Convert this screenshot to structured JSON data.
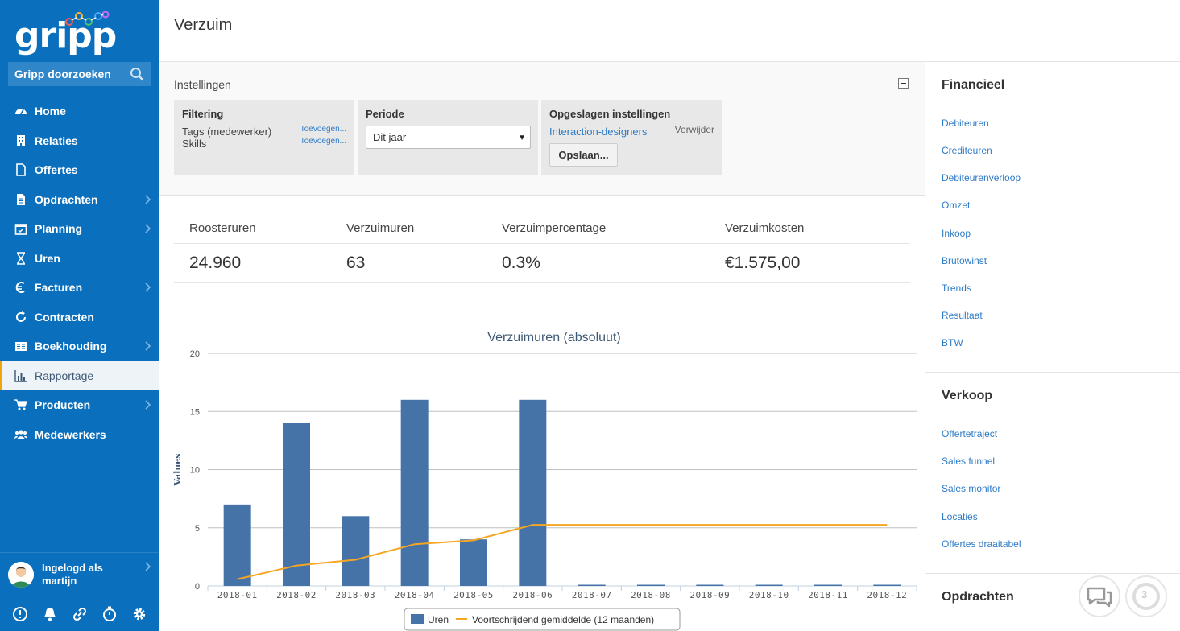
{
  "sidebar": {
    "logo_text": "gripp",
    "search_label": "Gripp doorzoeken",
    "items": [
      {
        "label": "Home",
        "icon": "dashboard-icon",
        "chevron": false
      },
      {
        "label": "Relaties",
        "icon": "building-icon",
        "chevron": false
      },
      {
        "label": "Offertes",
        "icon": "file-icon",
        "chevron": false
      },
      {
        "label": "Opdrachten",
        "icon": "document-icon",
        "chevron": true
      },
      {
        "label": "Planning",
        "icon": "calendar-icon",
        "chevron": true
      },
      {
        "label": "Uren",
        "icon": "hourglass-icon",
        "chevron": false
      },
      {
        "label": "Facturen",
        "icon": "euro-icon",
        "chevron": true
      },
      {
        "label": "Contracten",
        "icon": "refresh-icon",
        "chevron": false
      },
      {
        "label": "Boekhouding",
        "icon": "ledger-icon",
        "chevron": true
      },
      {
        "label": "Rapportage",
        "icon": "bar-chart-icon",
        "chevron": false,
        "active": true
      },
      {
        "label": "Producten",
        "icon": "cart-icon",
        "chevron": true
      },
      {
        "label": "Medewerkers",
        "icon": "users-icon",
        "chevron": false
      }
    ],
    "user": {
      "line1": "Ingelogd als",
      "line2": "martijn"
    }
  },
  "header": {
    "title": "Verzuim"
  },
  "settings": {
    "title": "Instellingen",
    "filtering": {
      "title": "Filtering",
      "rows": [
        {
          "label": "Tags (medewerker)",
          "action": "Toevoegen..."
        },
        {
          "label": "Skills",
          "action": "Toevoegen..."
        }
      ]
    },
    "period": {
      "title": "Periode",
      "selected": "Dit jaar"
    },
    "saved": {
      "title": "Opgeslagen instellingen",
      "link": "Interaction-designers",
      "delete": "Verwijder",
      "save_button": "Opslaan..."
    }
  },
  "kpis": [
    {
      "label": "Roosteruren",
      "value": "24.960"
    },
    {
      "label": "Verzuimuren",
      "value": "63"
    },
    {
      "label": "Verzuimpercentage",
      "value": "0.3%"
    },
    {
      "label": "Verzuimkosten",
      "value": "€1.575,00"
    }
  ],
  "chart_data": {
    "type": "bar",
    "title": "Verzuimuren (absoluut)",
    "ylabel": "Values",
    "xlabel": "",
    "ylim": [
      0,
      20
    ],
    "yticks": [
      0,
      5,
      10,
      15,
      20
    ],
    "categories": [
      "2018-01",
      "2018-02",
      "2018-03",
      "2018-04",
      "2018-05",
      "2018-06",
      "2018-07",
      "2018-08",
      "2018-09",
      "2018-10",
      "2018-11",
      "2018-12"
    ],
    "series": [
      {
        "name": "Uren",
        "type": "bar",
        "color": "#4572a7",
        "values": [
          7,
          14,
          6,
          16,
          4,
          16,
          0,
          0,
          0,
          0,
          0,
          0
        ]
      },
      {
        "name": "Voortschrijdend gemiddelde (12 maanden)",
        "type": "line",
        "color": "#f5a623",
        "values": [
          0.58,
          1.75,
          2.25,
          3.58,
          3.92,
          5.25,
          5.25,
          5.25,
          5.25,
          5.25,
          5.25,
          5.25
        ]
      }
    ],
    "legend": "bottom",
    "grid": true
  },
  "right_panel": {
    "sections": [
      {
        "title": "Financieel",
        "links": [
          "Debiteuren",
          "Crediteuren",
          "Debiteurenverloop",
          "Omzet",
          "Inkoop",
          "Brutowinst",
          "Trends",
          "Resultaat",
          "BTW"
        ]
      },
      {
        "title": "Verkoop",
        "links": [
          "Offertetraject",
          "Sales funnel",
          "Sales monitor",
          "Locaties",
          "Offertes draaitabel"
        ]
      },
      {
        "title": "Opdrachten",
        "links": []
      }
    ],
    "notification_count": "3"
  },
  "colors": {
    "sidebar": "#0a6fbd",
    "accent": "#f0a30a",
    "link": "#2e7bc6",
    "bar": "#4572a7",
    "line": "#f5a623"
  }
}
